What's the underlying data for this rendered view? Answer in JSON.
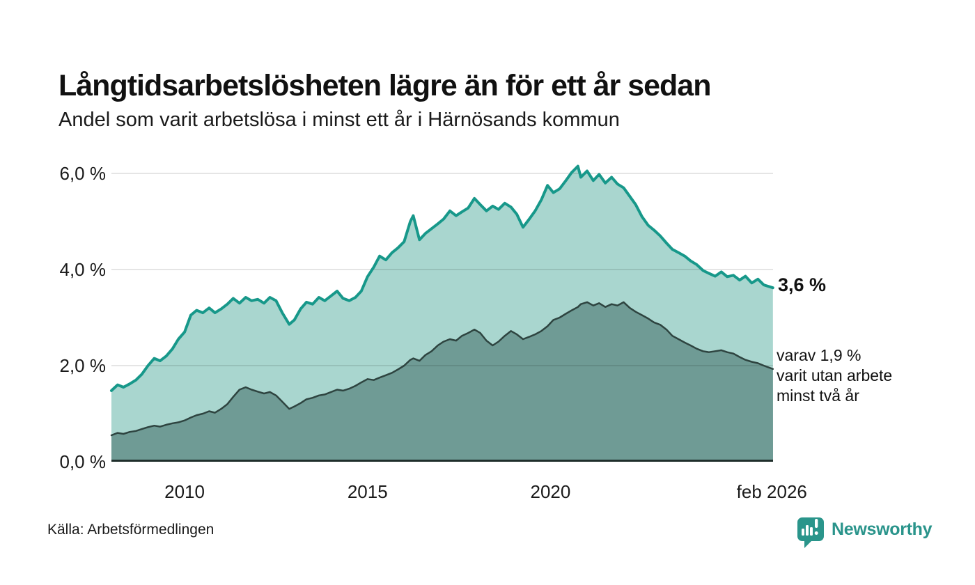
{
  "header": {
    "title": "Långtidsarbetslösheten lägre än för ett år sedan",
    "subtitle": "Andel som varit arbetslösa i minst ett år i Härnösands kommun"
  },
  "annotations": {
    "latest_total": "3,6 %",
    "secondary": "varav 1,9 %\nvarit utan arbete\nminst två år"
  },
  "footer": {
    "source": "Källa: Arbetsförmedlingen",
    "brand": "Newsworthy"
  },
  "colors": {
    "background": "#ffffff",
    "accent_teal": "#2a948b",
    "line_total": "#17988a",
    "fill_total": "#a9d6cf",
    "line_two_year": "#2e4440",
    "fill_two_year": "#6f9b95",
    "grid": "rgba(0,0,0,0.10)",
    "axis": "#1f2e2b",
    "text": "#1a1a1a"
  },
  "chart_data": {
    "type": "area",
    "title": "Långtidsarbetslösheten lägre än för ett år sedan",
    "subtitle": "Andel som varit arbetslösa i minst ett år i Härnösands kommun",
    "xlabel": "",
    "ylabel": "",
    "xlim": [
      2008.0,
      2026.083
    ],
    "ylim": [
      0,
      6.42
    ],
    "grid_on": true,
    "grid_values": [
      2,
      4,
      6
    ],
    "grid_color": "rgba(0,0,0,0.10)",
    "axis_color": "#1f2e2b",
    "x_ticks": [
      {
        "value": 2010,
        "label": "2010"
      },
      {
        "value": 2015,
        "label": "2015"
      },
      {
        "value": 2020,
        "label": "2020"
      },
      {
        "value": 2026.05,
        "label": "feb 2026"
      }
    ],
    "y_ticks": [
      {
        "value": 0,
        "label": "0,0 %"
      },
      {
        "value": 2,
        "label": "2,0 %"
      },
      {
        "value": 4,
        "label": "4,0 %"
      },
      {
        "value": 6,
        "label": "6,0 %"
      }
    ],
    "x": [
      2008.0,
      2008.17,
      2008.33,
      2008.5,
      2008.67,
      2008.83,
      2009.0,
      2009.17,
      2009.33,
      2009.5,
      2009.67,
      2009.83,
      2010.0,
      2010.17,
      2010.33,
      2010.5,
      2010.67,
      2010.83,
      2011.0,
      2011.17,
      2011.33,
      2011.5,
      2011.67,
      2011.83,
      2012.0,
      2012.17,
      2012.33,
      2012.5,
      2012.67,
      2012.86,
      2013.0,
      2013.17,
      2013.33,
      2013.5,
      2013.67,
      2013.83,
      2014.0,
      2014.17,
      2014.33,
      2014.5,
      2014.67,
      2014.83,
      2015.0,
      2015.17,
      2015.33,
      2015.5,
      2015.67,
      2015.83,
      2016.0,
      2016.17,
      2016.25,
      2016.42,
      2016.58,
      2016.75,
      2016.92,
      2017.08,
      2017.25,
      2017.42,
      2017.58,
      2017.75,
      2017.92,
      2018.08,
      2018.25,
      2018.42,
      2018.58,
      2018.75,
      2018.92,
      2019.08,
      2019.25,
      2019.42,
      2019.58,
      2019.75,
      2019.92,
      2020.08,
      2020.25,
      2020.42,
      2020.58,
      2020.75,
      2020.83,
      2021.0,
      2021.17,
      2021.33,
      2021.5,
      2021.67,
      2021.83,
      2022.0,
      2022.17,
      2022.33,
      2022.5,
      2022.67,
      2022.83,
      2023.0,
      2023.17,
      2023.33,
      2023.5,
      2023.67,
      2023.83,
      2024.0,
      2024.17,
      2024.33,
      2024.5,
      2024.67,
      2024.83,
      2025.0,
      2025.17,
      2025.33,
      2025.5,
      2025.67,
      2025.83,
      2026.08
    ],
    "series": [
      {
        "name": "Arbetslösa minst ett år",
        "latest_value": 3.6,
        "line_color": "#17988a",
        "fill_color": "#a9d6cf",
        "line_width": 4,
        "values": [
          1.48,
          1.6,
          1.55,
          1.62,
          1.7,
          1.82,
          2.0,
          2.15,
          2.1,
          2.2,
          2.35,
          2.55,
          2.7,
          3.05,
          3.15,
          3.1,
          3.2,
          3.1,
          3.18,
          3.28,
          3.4,
          3.3,
          3.42,
          3.35,
          3.38,
          3.3,
          3.42,
          3.35,
          3.1,
          2.86,
          2.95,
          3.18,
          3.32,
          3.28,
          3.42,
          3.35,
          3.45,
          3.55,
          3.4,
          3.35,
          3.42,
          3.55,
          3.85,
          4.05,
          4.28,
          4.2,
          4.35,
          4.45,
          4.58,
          5.0,
          5.12,
          4.62,
          4.75,
          4.85,
          4.95,
          5.05,
          5.22,
          5.12,
          5.2,
          5.28,
          5.48,
          5.35,
          5.22,
          5.32,
          5.25,
          5.38,
          5.3,
          5.15,
          4.88,
          5.05,
          5.22,
          5.45,
          5.75,
          5.6,
          5.68,
          5.85,
          6.02,
          6.15,
          5.92,
          6.05,
          5.85,
          5.98,
          5.8,
          5.92,
          5.78,
          5.7,
          5.52,
          5.35,
          5.1,
          4.92,
          4.82,
          4.7,
          4.55,
          4.42,
          4.35,
          4.28,
          4.18,
          4.1,
          3.98,
          3.92,
          3.86,
          3.95,
          3.85,
          3.88,
          3.78,
          3.86,
          3.72,
          3.8,
          3.68,
          3.62
        ]
      },
      {
        "name": "Arbetslösa minst två år",
        "latest_value": 1.9,
        "line_color": "#2e4440",
        "fill_color": "#6f9b95",
        "line_width": 2.5,
        "values": [
          0.55,
          0.6,
          0.58,
          0.62,
          0.64,
          0.68,
          0.72,
          0.75,
          0.73,
          0.77,
          0.8,
          0.82,
          0.86,
          0.92,
          0.97,
          1.0,
          1.05,
          1.02,
          1.1,
          1.2,
          1.35,
          1.5,
          1.55,
          1.5,
          1.46,
          1.42,
          1.45,
          1.38,
          1.25,
          1.1,
          1.15,
          1.22,
          1.3,
          1.33,
          1.38,
          1.4,
          1.45,
          1.5,
          1.48,
          1.52,
          1.58,
          1.65,
          1.72,
          1.7,
          1.75,
          1.8,
          1.85,
          1.92,
          2.0,
          2.12,
          2.15,
          2.1,
          2.22,
          2.3,
          2.42,
          2.5,
          2.55,
          2.52,
          2.62,
          2.68,
          2.75,
          2.68,
          2.52,
          2.42,
          2.5,
          2.62,
          2.72,
          2.65,
          2.55,
          2.6,
          2.65,
          2.72,
          2.82,
          2.95,
          3.0,
          3.08,
          3.15,
          3.22,
          3.28,
          3.32,
          3.25,
          3.3,
          3.22,
          3.28,
          3.25,
          3.32,
          3.2,
          3.12,
          3.05,
          2.98,
          2.9,
          2.85,
          2.75,
          2.62,
          2.55,
          2.48,
          2.42,
          2.35,
          2.3,
          2.28,
          2.3,
          2.32,
          2.28,
          2.25,
          2.18,
          2.12,
          2.08,
          2.05,
          2.0,
          1.93
        ]
      }
    ]
  }
}
